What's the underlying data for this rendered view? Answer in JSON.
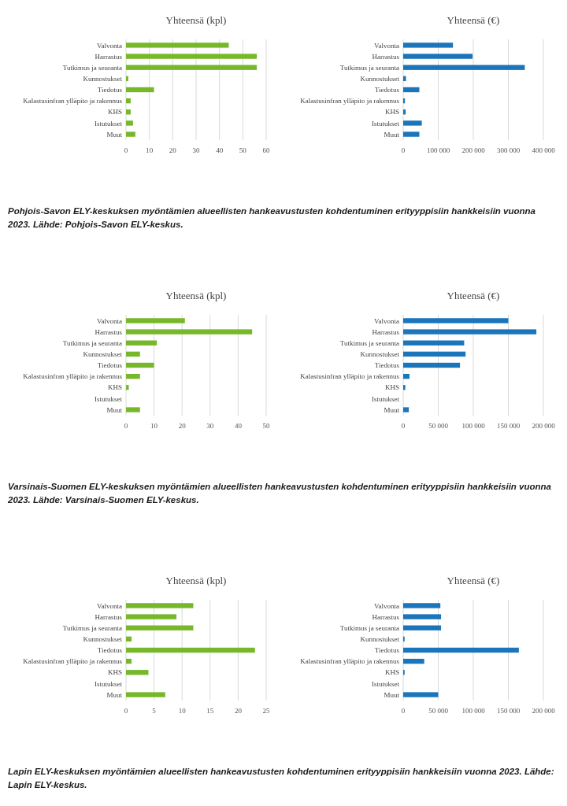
{
  "chart_data": [
    {
      "type": "bar",
      "orientation": "horizontal",
      "title": "Yhteensä (kpl)",
      "categories": [
        "Valvonta",
        "Harrastus",
        "Tutkimus ja seuranta",
        "Kunnostukset",
        "Tiedotus",
        "Kalastusinfran ylläpito ja rakennus",
        "KHS",
        "Istutukset",
        "Muut"
      ],
      "values": [
        44,
        56,
        56,
        1,
        12,
        2,
        2,
        3,
        4
      ],
      "color": "#77b82a",
      "xlim": [
        0,
        60
      ],
      "xticks": [
        0,
        10,
        20,
        30,
        40,
        50,
        60
      ],
      "grid": "x",
      "annotations": [
        "Pohjois-Savon ELY-keskuksen myöntämien alueellisten hankeavustusten kohdentuminen erityyppisiin hankkeisiin vuonna 2023. Lähde: Pohjois-Savon ELY-keskus."
      ]
    },
    {
      "type": "bar",
      "orientation": "horizontal",
      "title": "Yhteensä (€)",
      "categories": [
        "Valvonta",
        "Harrastus",
        "Tutkimus ja seuranta",
        "Kunnostukset",
        "Tiedotus",
        "Kalastusinfran ylläpito ja rakennus",
        "KHS",
        "Istutukset",
        "Muut"
      ],
      "values": [
        142000,
        198000,
        347000,
        8000,
        46000,
        5000,
        7000,
        53000,
        46000
      ],
      "color": "#1b75bb",
      "xlim": [
        0,
        400000
      ],
      "xticks": [
        0,
        {
          "value": 100000,
          "label": "100 000"
        },
        {
          "value": 200000,
          "label": "200 000"
        },
        {
          "value": 300000,
          "label": "300 000"
        },
        {
          "value": 400000,
          "label": "400 000"
        }
      ],
      "grid": "x"
    },
    {
      "type": "bar",
      "orientation": "horizontal",
      "title": "Yhteensä (kpl)",
      "categories": [
        "Valvonta",
        "Harrastus",
        "Tutkimus ja seuranta",
        "Kunnostukset",
        "Tiedotus",
        "Kalastusinfran ylläpito ja rakennus",
        "KHS",
        "Istutukset",
        "Muut"
      ],
      "values": [
        21,
        45,
        11,
        5,
        10,
        5,
        1,
        0,
        5
      ],
      "color": "#77b82a",
      "xlim": [
        0,
        50
      ],
      "xticks": [
        0,
        10,
        20,
        30,
        40,
        50
      ],
      "grid": "x",
      "annotations": [
        "Varsinais-Suomen ELY-keskuksen myöntämien alueellisten hankeavustusten kohdentuminen erityyppisiin hankkeisiin vuonna 2023. Lähde: Varsinais-Suomen ELY-keskus."
      ]
    },
    {
      "type": "bar",
      "orientation": "horizontal",
      "title": "Yhteensä (€)",
      "categories": [
        "Valvonta",
        "Harrastus",
        "Tutkimus ja seuranta",
        "Kunnostukset",
        "Tiedotus",
        "Kalastusinfran ylläpito ja rakennus",
        "KHS",
        "Istutukset",
        "Muut"
      ],
      "values": [
        150000,
        190000,
        87000,
        89000,
        81000,
        9000,
        3000,
        0,
        8000
      ],
      "color": "#1b75bb",
      "xlim": [
        0,
        200000
      ],
      "xticks": [
        0,
        {
          "value": 50000,
          "label": "50 000"
        },
        {
          "value": 100000,
          "label": "100 000"
        },
        {
          "value": 150000,
          "label": "150 000"
        },
        {
          "value": 200000,
          "label": "200 000"
        }
      ],
      "grid": "x"
    },
    {
      "type": "bar",
      "orientation": "horizontal",
      "title": "Yhteensä (kpl)",
      "categories": [
        "Valvonta",
        "Harrastus",
        "Tutkimus ja seuranta",
        "Kunnostukset",
        "Tiedotus",
        "Kalastusinfran ylläpito ja rakennus",
        "KHS",
        "Istutukset",
        "Muut"
      ],
      "values": [
        12,
        9,
        12,
        1,
        23,
        1,
        4,
        0,
        7
      ],
      "color": "#77b82a",
      "xlim": [
        0,
        25
      ],
      "xticks": [
        0,
        5,
        10,
        15,
        20,
        25
      ],
      "grid": "x",
      "annotations": [
        "Lapin ELY-keskuksen myöntämien alueellisten hankeavustusten kohdentuminen erityyppisiin hankkeisiin vuonna 2023. Lähde: Lapin ELY-keskus."
      ]
    },
    {
      "type": "bar",
      "orientation": "horizontal",
      "title": "Yhteensä (€)",
      "categories": [
        "Valvonta",
        "Harrastus",
        "Tutkimus ja seuranta",
        "Kunnostukset",
        "Tiedotus",
        "Kalastusinfran ylläpito ja rakennus",
        "KHS",
        "Istutukset",
        "Muut"
      ],
      "values": [
        53000,
        54000,
        54000,
        2000,
        165000,
        30000,
        2000,
        0,
        50000
      ],
      "color": "#1b75bb",
      "xlim": [
        0,
        200000
      ],
      "xticks": [
        0,
        {
          "value": 50000,
          "label": "50 000"
        },
        {
          "value": 100000,
          "label": "100 000"
        },
        {
          "value": 150000,
          "label": "150 000"
        },
        {
          "value": 200000,
          "label": "200 000"
        }
      ],
      "grid": "x"
    }
  ]
}
